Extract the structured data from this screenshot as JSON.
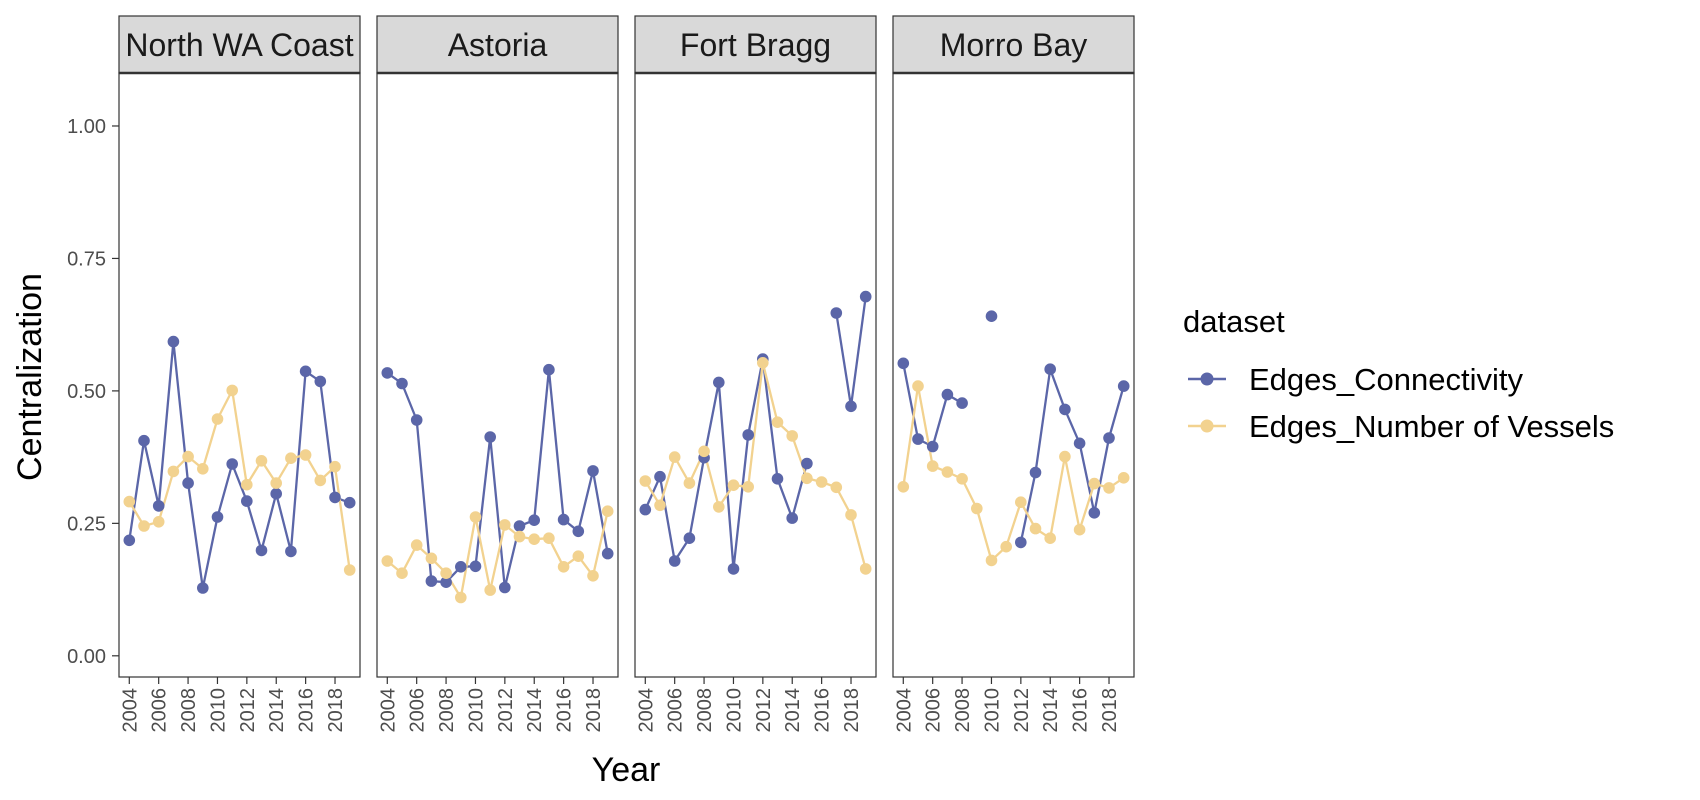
{
  "chart_data": {
    "type": "line",
    "xlabel": "Year",
    "ylabel": "Centralization",
    "ylim": [
      -0.04,
      1.1
    ],
    "y_ticks": [
      "0.00",
      "0.25",
      "0.50",
      "0.75",
      "1.00"
    ],
    "y_tick_values": [
      0,
      0.25,
      0.5,
      0.75,
      1.0
    ],
    "xlim": [
      2003.3,
      2019.7
    ],
    "x_ticks": [
      "2004",
      "2006",
      "2008",
      "2010",
      "2012",
      "2014",
      "2016",
      "2018"
    ],
    "x_tick_values": [
      2004,
      2006,
      2008,
      2010,
      2012,
      2014,
      2016,
      2018
    ],
    "legend_title": "dataset",
    "legend_position": "right",
    "grid": false,
    "series_styles": [
      {
        "name": "Edges_Connectivity",
        "color": "#5b66a8"
      },
      {
        "name": "Edges_Number of Vessels",
        "color": "#f2d28f"
      }
    ],
    "panels": [
      {
        "title": "North WA Coast",
        "series": [
          {
            "name": "Edges_Connectivity",
            "x": [
              2004,
              2005,
              2006,
              2007,
              2008,
              2009,
              2010,
              2011,
              2012,
              2013,
              2014,
              2015,
              2016,
              2017,
              2018,
              2019
            ],
            "values": [
              0.218,
              0.406,
              0.283,
              0.593,
              0.326,
              0.128,
              0.262,
              0.362,
              0.292,
              0.199,
              0.306,
              0.197,
              0.537,
              0.518,
              0.299,
              0.289
            ]
          },
          {
            "name": "Edges_Number of Vessels",
            "x": [
              2004,
              2005,
              2006,
              2007,
              2008,
              2009,
              2010,
              2011,
              2012,
              2013,
              2014,
              2015,
              2016,
              2017,
              2018,
              2019
            ],
            "values": [
              0.291,
              0.245,
              0.253,
              0.348,
              0.376,
              0.353,
              0.447,
              0.501,
              0.323,
              0.368,
              0.326,
              0.373,
              0.379,
              0.331,
              0.357,
              0.162
            ]
          }
        ]
      },
      {
        "title": "Astoria",
        "series": [
          {
            "name": "Edges_Connectivity",
            "x": [
              2004,
              2005,
              2006,
              2007,
              2008,
              2009,
              2010,
              2011,
              2012,
              2013,
              2014,
              2015,
              2016,
              2017,
              2018,
              2019
            ],
            "values": [
              0.534,
              0.514,
              0.445,
              0.141,
              0.139,
              0.168,
              0.169,
              0.413,
              0.129,
              0.245,
              0.256,
              0.54,
              0.257,
              0.235,
              0.349,
              0.193
            ]
          },
          {
            "name": "Edges_Number of Vessels",
            "x": [
              2004,
              2005,
              2006,
              2007,
              2008,
              2009,
              2010,
              2011,
              2012,
              2013,
              2014,
              2015,
              2016,
              2017,
              2018,
              2019
            ],
            "values": [
              0.179,
              0.156,
              0.209,
              0.184,
              0.156,
              0.11,
              0.262,
              0.124,
              0.247,
              0.225,
              0.22,
              0.222,
              0.168,
              0.188,
              0.151,
              0.273
            ]
          }
        ]
      },
      {
        "title": "Fort Bragg",
        "series": [
          {
            "name": "Edges_Connectivity",
            "x": [
              2004,
              2005,
              2006,
              2007,
              2008,
              2009,
              2010,
              2011,
              2012,
              2013,
              2014,
              2015
            ],
            "values": [
              0.276,
              0.338,
              0.179,
              0.222,
              0.374,
              0.516,
              0.164,
              0.417,
              0.56,
              0.334,
              0.26,
              0.363
            ]
          },
          {
            "name": "Edges_Connectivity",
            "x": [
              2017,
              2018,
              2019
            ],
            "values": [
              0.647,
              0.471,
              0.678
            ]
          },
          {
            "name": "Edges_Number of Vessels",
            "x": [
              2004,
              2005,
              2006,
              2007,
              2008,
              2009,
              2010,
              2011,
              2012,
              2013,
              2014,
              2015,
              2016,
              2017,
              2018,
              2019
            ],
            "values": [
              0.33,
              0.284,
              0.375,
              0.326,
              0.386,
              0.281,
              0.322,
              0.319,
              0.553,
              0.441,
              0.415,
              0.335,
              0.328,
              0.318,
              0.266,
              0.164
            ]
          }
        ]
      },
      {
        "title": "Morro Bay",
        "series": [
          {
            "name": "Edges_Connectivity",
            "x": [
              2004,
              2005,
              2006,
              2007,
              2008
            ],
            "values": [
              0.552,
              0.409,
              0.395,
              0.493,
              0.477
            ]
          },
          {
            "name": "Edges_Connectivity",
            "x": [
              2010
            ],
            "values": [
              0.641
            ]
          },
          {
            "name": "Edges_Connectivity",
            "x": [
              2012,
              2013,
              2014,
              2015,
              2016,
              2017,
              2018,
              2019
            ],
            "values": [
              0.214,
              0.346,
              0.541,
              0.465,
              0.401,
              0.27,
              0.411,
              0.509
            ]
          },
          {
            "name": "Edges_Number of Vessels",
            "x": [
              2004,
              2005,
              2006,
              2007,
              2008,
              2009,
              2010,
              2011,
              2012,
              2013,
              2014,
              2015,
              2016,
              2017,
              2018,
              2019
            ],
            "values": [
              0.319,
              0.509,
              0.358,
              0.347,
              0.334,
              0.278,
              0.18,
              0.206,
              0.29,
              0.24,
              0.222,
              0.376,
              0.238,
              0.325,
              0.317,
              0.336
            ]
          }
        ]
      }
    ]
  }
}
